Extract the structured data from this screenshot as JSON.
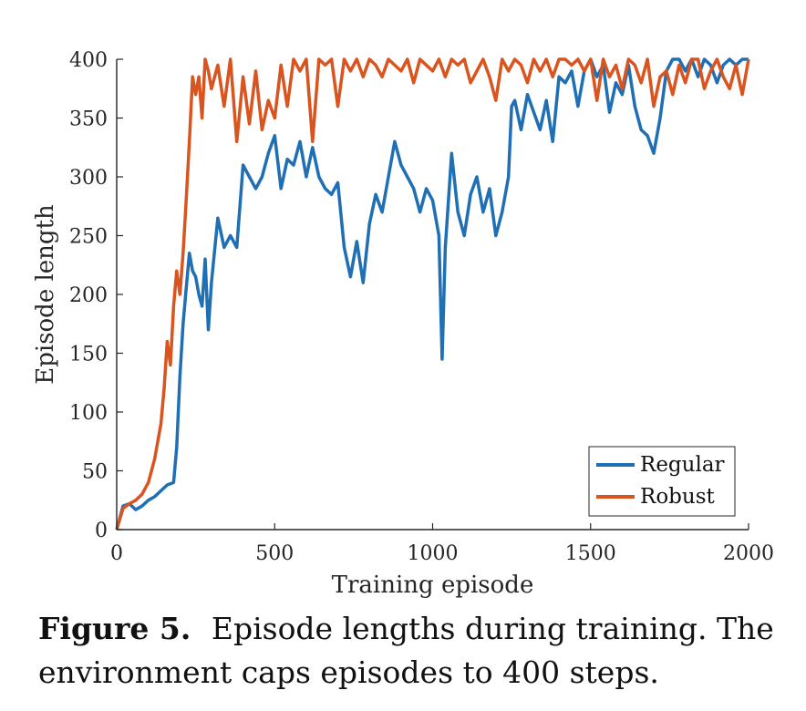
{
  "chart_data": {
    "type": "line",
    "xlabel": "Training episode",
    "ylabel": "Episode length",
    "xlim": [
      0,
      2000
    ],
    "ylim": [
      0,
      400
    ],
    "xticks": [
      0,
      500,
      1000,
      1500,
      2000
    ],
    "yticks": [
      0,
      50,
      100,
      150,
      200,
      250,
      300,
      350,
      400
    ],
    "legend_position": "bottom-right",
    "series": [
      {
        "name": "Regular",
        "color": "#1f6fb4",
        "x": [
          0,
          20,
          40,
          60,
          80,
          100,
          120,
          140,
          160,
          180,
          190,
          200,
          210,
          220,
          230,
          240,
          250,
          260,
          270,
          280,
          290,
          300,
          320,
          340,
          360,
          380,
          400,
          420,
          440,
          460,
          480,
          500,
          520,
          540,
          560,
          580,
          600,
          620,
          640,
          660,
          680,
          700,
          720,
          740,
          760,
          780,
          800,
          820,
          840,
          860,
          880,
          900,
          920,
          940,
          960,
          980,
          1000,
          1020,
          1030,
          1040,
          1060,
          1080,
          1100,
          1120,
          1140,
          1160,
          1180,
          1200,
          1220,
          1240,
          1250,
          1260,
          1280,
          1300,
          1320,
          1340,
          1360,
          1380,
          1400,
          1420,
          1440,
          1460,
          1480,
          1500,
          1520,
          1540,
          1560,
          1580,
          1600,
          1620,
          1640,
          1660,
          1680,
          1700,
          1720,
          1740,
          1760,
          1780,
          1800,
          1820,
          1840,
          1860,
          1880,
          1900,
          1920,
          1940,
          1960,
          1980,
          2000
        ],
        "values": [
          0,
          20,
          22,
          17,
          20,
          25,
          28,
          33,
          38,
          40,
          70,
          130,
          175,
          205,
          235,
          220,
          215,
          200,
          190,
          230,
          170,
          210,
          265,
          240,
          250,
          240,
          310,
          300,
          290,
          300,
          320,
          335,
          290,
          315,
          310,
          330,
          300,
          325,
          300,
          290,
          285,
          295,
          240,
          215,
          245,
          210,
          260,
          285,
          270,
          300,
          330,
          310,
          300,
          290,
          270,
          290,
          280,
          250,
          145,
          240,
          320,
          270,
          250,
          285,
          300,
          270,
          290,
          250,
          270,
          300,
          360,
          365,
          340,
          370,
          355,
          340,
          365,
          330,
          385,
          380,
          390,
          360,
          390,
          400,
          385,
          395,
          355,
          380,
          370,
          395,
          360,
          340,
          335,
          320,
          350,
          390,
          400,
          400,
          390,
          400,
          385,
          400,
          395,
          380,
          395,
          400,
          395,
          400,
          400
        ],
        "y": [
          0,
          20,
          22,
          17,
          20,
          25,
          28,
          33,
          38,
          40,
          70,
          130,
          175,
          205,
          235,
          220,
          215,
          200,
          190,
          230,
          170,
          210,
          265,
          240,
          250,
          240,
          310,
          300,
          290,
          300,
          320,
          335,
          290,
          315,
          310,
          330,
          300,
          325,
          300,
          290,
          285,
          295,
          240,
          215,
          245,
          210,
          260,
          285,
          270,
          300,
          330,
          310,
          300,
          290,
          270,
          290,
          280,
          250,
          145,
          240,
          320,
          270,
          250,
          285,
          300,
          270,
          290,
          250,
          270,
          300,
          360,
          365,
          340,
          370,
          355,
          340,
          365,
          330,
          385,
          380,
          390,
          360,
          390,
          400,
          385,
          395,
          355,
          380,
          370,
          395,
          360,
          340,
          335,
          320,
          350,
          390,
          400,
          400,
          390,
          400,
          385,
          400,
          395,
          380,
          395,
          400,
          395,
          400,
          400
        ]
      },
      {
        "name": "Robust",
        "color": "#d9541e",
        "x": [
          0,
          20,
          40,
          60,
          80,
          100,
          120,
          140,
          150,
          160,
          170,
          180,
          190,
          200,
          210,
          220,
          230,
          240,
          250,
          260,
          270,
          280,
          290,
          300,
          320,
          340,
          360,
          380,
          400,
          420,
          440,
          460,
          480,
          500,
          520,
          540,
          560,
          580,
          600,
          620,
          640,
          660,
          680,
          700,
          720,
          740,
          760,
          780,
          800,
          820,
          840,
          860,
          880,
          900,
          920,
          940,
          960,
          980,
          1000,
          1020,
          1040,
          1060,
          1080,
          1100,
          1120,
          1140,
          1160,
          1180,
          1200,
          1220,
          1240,
          1260,
          1280,
          1300,
          1320,
          1340,
          1360,
          1380,
          1400,
          1420,
          1440,
          1460,
          1480,
          1500,
          1520,
          1540,
          1560,
          1580,
          1600,
          1620,
          1640,
          1660,
          1680,
          1700,
          1720,
          1740,
          1760,
          1780,
          1800,
          1820,
          1840,
          1860,
          1880,
          1900,
          1920,
          1940,
          1960,
          1980,
          2000
        ],
        "values": [
          0,
          18,
          22,
          25,
          30,
          40,
          60,
          90,
          120,
          160,
          140,
          190,
          220,
          200,
          235,
          280,
          330,
          385,
          370,
          385,
          350,
          400,
          390,
          375,
          395,
          360,
          400,
          330,
          385,
          345,
          390,
          340,
          365,
          350,
          395,
          360,
          400,
          390,
          400,
          330,
          400,
          395,
          400,
          360,
          400,
          390,
          400,
          385,
          400,
          395,
          385,
          400,
          395,
          390,
          400,
          380,
          400,
          395,
          390,
          400,
          385,
          400,
          395,
          400,
          380,
          390,
          400,
          385,
          365,
          400,
          390,
          400,
          395,
          380,
          400,
          390,
          400,
          385,
          400,
          400,
          395,
          400,
          390,
          400,
          365,
          400,
          385,
          395,
          375,
          400,
          395,
          380,
          400,
          360,
          385,
          390,
          370,
          395,
          380,
          400,
          400,
          375,
          390,
          400,
          385,
          375,
          395,
          370,
          400
        ],
        "y": [
          0,
          18,
          22,
          25,
          30,
          40,
          60,
          90,
          120,
          160,
          140,
          190,
          220,
          200,
          235,
          280,
          330,
          385,
          370,
          385,
          350,
          400,
          390,
          375,
          395,
          360,
          400,
          330,
          385,
          345,
          390,
          340,
          365,
          350,
          395,
          360,
          400,
          390,
          400,
          330,
          400,
          395,
          400,
          360,
          400,
          390,
          400,
          385,
          400,
          395,
          385,
          400,
          395,
          390,
          400,
          380,
          400,
          395,
          390,
          400,
          385,
          400,
          395,
          400,
          380,
          390,
          400,
          385,
          365,
          400,
          390,
          400,
          395,
          380,
          400,
          390,
          400,
          385,
          400,
          400,
          395,
          400,
          390,
          400,
          365,
          400,
          385,
          395,
          375,
          400,
          395,
          380,
          400,
          360,
          385,
          390,
          370,
          395,
          380,
          400,
          400,
          375,
          390,
          400,
          385,
          375,
          395,
          370,
          400
        ]
      }
    ]
  },
  "caption": {
    "label": "Figure 5.",
    "text": "Episode lengths during training. The environment caps episodes to 400 steps."
  }
}
